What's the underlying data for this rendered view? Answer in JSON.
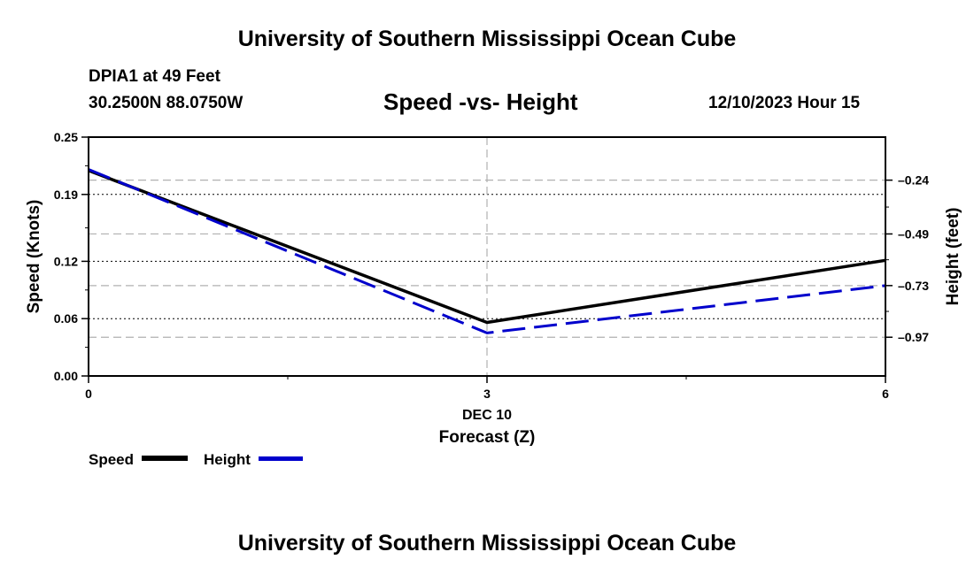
{
  "page": {
    "top_title": "University of Southern Mississippi Ocean Cube",
    "bottom_title": "University of Southern Mississippi Ocean Cube",
    "station": "DPIA1 at 49 Feet",
    "coords": "30.2500N  88.0750W",
    "timestamp": "12/10/2023 Hour 15"
  },
  "chart_data": {
    "type": "line",
    "title": "Speed -vs- Height",
    "xlabel": "Forecast (Z)",
    "x_date_label": "DEC 10",
    "ylabel": "Speed (Knots)",
    "y2label": "Height (feet)",
    "x": [
      0,
      3,
      6
    ],
    "x_ticks": [
      "0",
      "3",
      "6"
    ],
    "ylim": [
      0,
      0.25
    ],
    "y_ticks": [
      "0.00",
      "0.06",
      "0.12",
      "0.19",
      "0.25"
    ],
    "y2_ticks": [
      "-0.24",
      "-0.49",
      "-0.73",
      "-0.97"
    ],
    "y2_tick_labels": [
      "–0.24",
      "–0.49",
      "–0.73",
      "–0.97"
    ],
    "grid": true,
    "series": [
      {
        "name": "Speed",
        "axis": "left",
        "color": "#000000",
        "style": "solid",
        "values": [
          0.215,
          0.056,
          0.121
        ]
      },
      {
        "name": "Height",
        "axis": "right",
        "color": "#0000cc",
        "style": "dashed",
        "values": [
          -0.19,
          -0.95,
          -0.73
        ]
      }
    ],
    "legend": [
      "Speed",
      "Height"
    ]
  }
}
